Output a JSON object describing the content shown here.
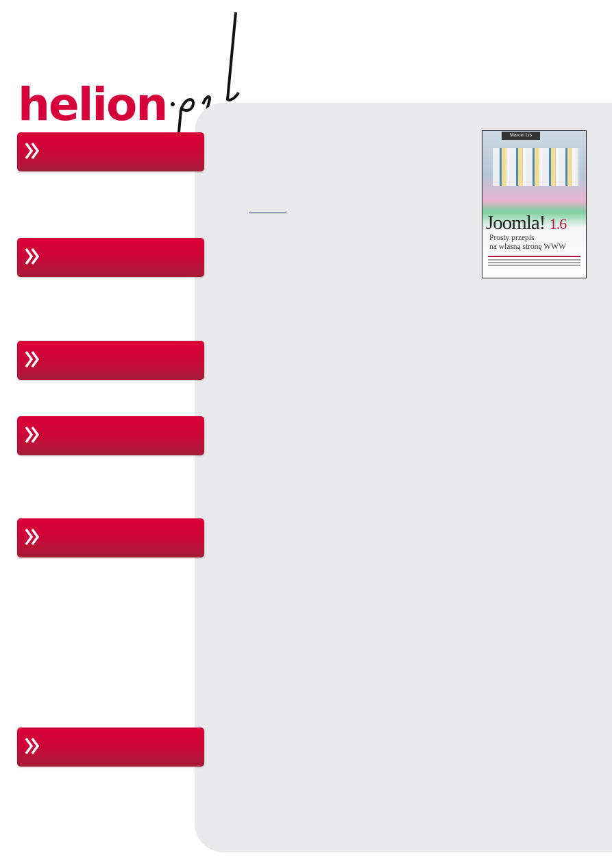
{
  "logo": {
    "text": "helion",
    "suffix": ".pl",
    "color": "#d6003a"
  },
  "nav_buttons": [
    {
      "icon": "double-chevron-right-icon"
    },
    {
      "icon": "double-chevron-right-icon"
    },
    {
      "icon": "double-chevron-right-icon"
    },
    {
      "icon": "double-chevron-right-icon"
    },
    {
      "icon": "double-chevron-right-icon"
    },
    {
      "icon": "double-chevron-right-icon"
    }
  ],
  "colors": {
    "button_red": "#d90038",
    "panel": "#e9e9ec"
  },
  "book_cover": {
    "author": "Marcin Lis",
    "title": "Joomla!",
    "version": "1.6",
    "subtitle_line1": "Prosty przepis",
    "subtitle_line2": "na własną stronę WWW"
  }
}
